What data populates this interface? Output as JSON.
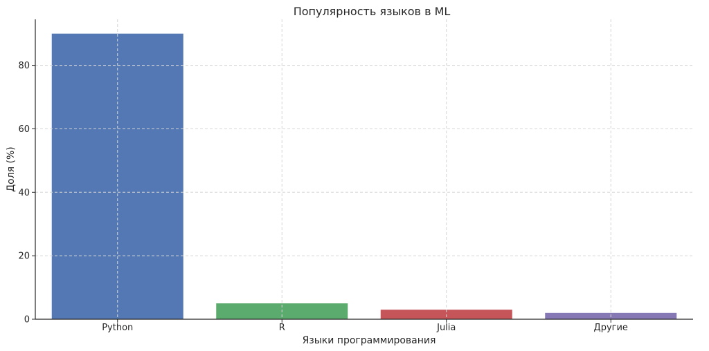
{
  "chart_data": {
    "type": "bar",
    "title": "Популярность языков в ML",
    "xlabel": "Языки программирования",
    "ylabel": "Доля (%)",
    "categories": [
      "Python",
      "R",
      "Julia",
      "Другие"
    ],
    "values": [
      90,
      5,
      3,
      2
    ],
    "colors": [
      "#4c72b0",
      "#55a868",
      "#c44e52",
      "#8172b2"
    ],
    "ylim": [
      0,
      94.5
    ],
    "yticks": [
      0,
      20,
      40,
      60,
      80
    ],
    "grid": true
  }
}
